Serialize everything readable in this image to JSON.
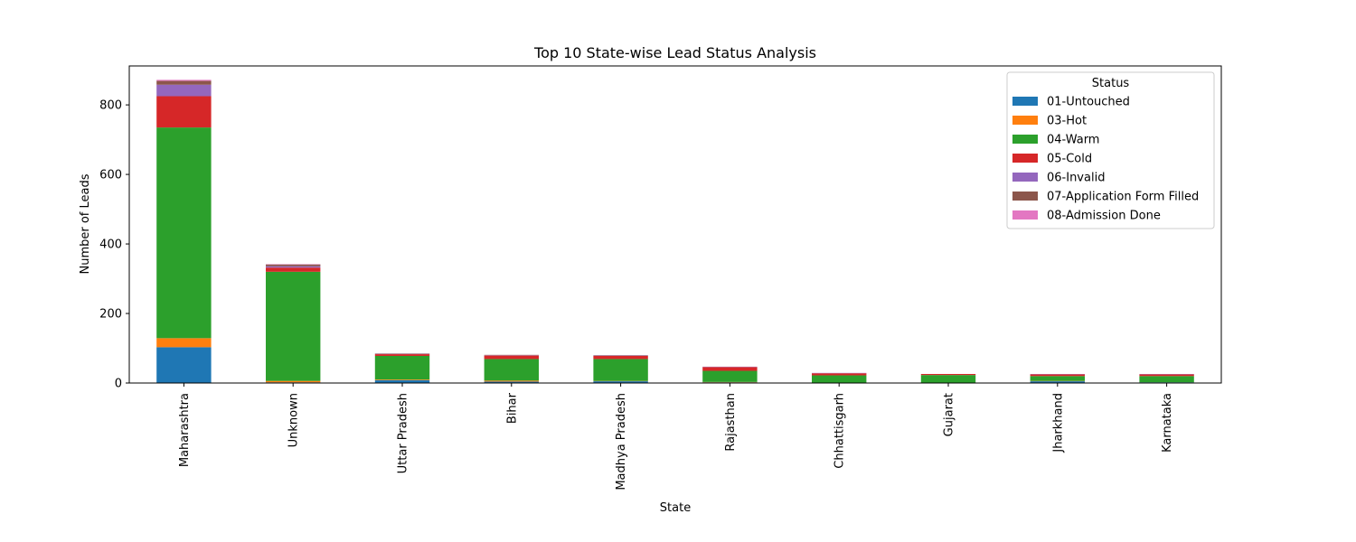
{
  "chart_data": {
    "type": "bar",
    "stacked": true,
    "title": "Top 10 State-wise Lead Status Analysis",
    "xlabel": "State",
    "ylabel": "Number of Leads",
    "ylim": [
      0,
      912
    ],
    "yticks": [
      0,
      200,
      400,
      600,
      800
    ],
    "grid": false,
    "legend": {
      "title": "Status",
      "placement": "top-right"
    },
    "categories": [
      "Maharashtra",
      "Unknown",
      "Uttar Pradesh",
      "Bihar",
      "Madhya Pradesh",
      "Rajasthan",
      "Chhattisgarh",
      "Gujarat",
      "Jharkhand",
      "Karnataka"
    ],
    "series": [
      {
        "name": "01-Untouched",
        "color": "#1f77b4",
        "values": [
          103,
          2,
          8,
          4,
          5,
          2,
          1,
          1,
          5,
          2
        ]
      },
      {
        "name": "03-Hot",
        "color": "#ff7f0e",
        "values": [
          26,
          4,
          2,
          3,
          1,
          1,
          0,
          0,
          1,
          0
        ]
      },
      {
        "name": "04-Warm",
        "color": "#2ca02c",
        "values": [
          606,
          314,
          68,
          62,
          63,
          32,
          21,
          22,
          14,
          18
        ]
      },
      {
        "name": "05-Cold",
        "color": "#d62728",
        "values": [
          90,
          12,
          5,
          10,
          9,
          11,
          6,
          3,
          5,
          5
        ]
      },
      {
        "name": "06-Invalid",
        "color": "#9467bd",
        "values": [
          33,
          4,
          1,
          1,
          1,
          1,
          1,
          0,
          1,
          1
        ]
      },
      {
        "name": "07-Application Form Filled",
        "color": "#8c564b",
        "values": [
          11,
          5,
          1,
          1,
          1,
          0,
          0,
          0,
          0,
          0
        ]
      },
      {
        "name": "08-Admission Done",
        "color": "#e377c2",
        "values": [
          3,
          1,
          0,
          0,
          0,
          0,
          0,
          0,
          0,
          0
        ]
      }
    ]
  }
}
